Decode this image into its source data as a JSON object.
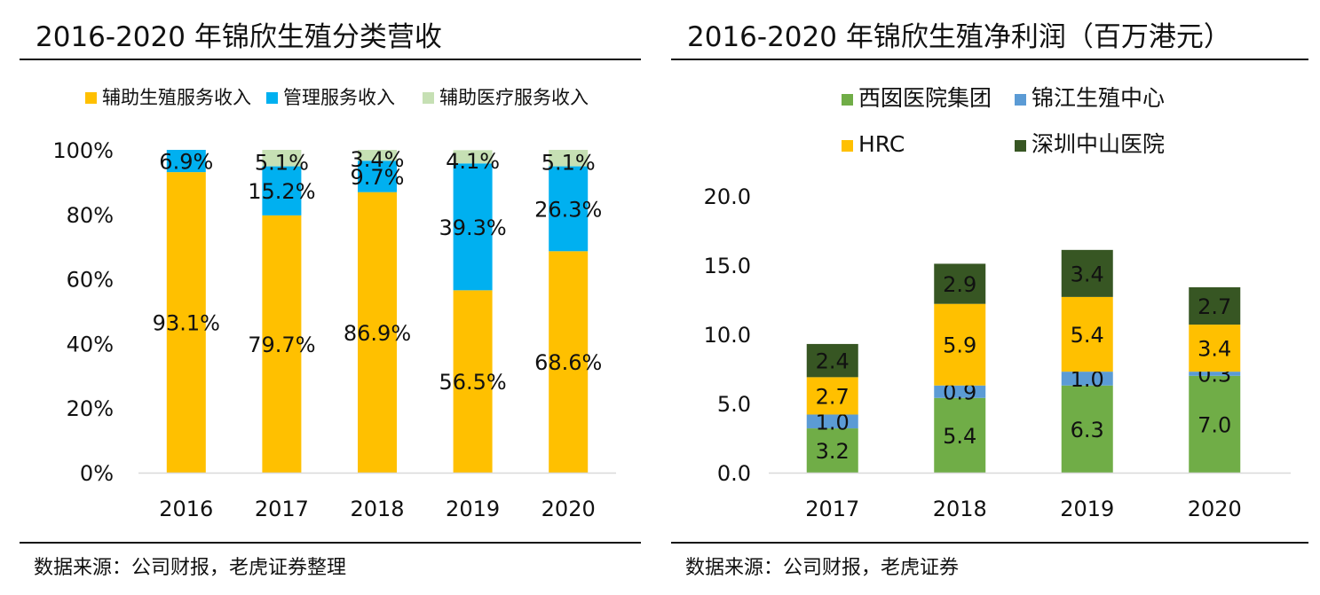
{
  "left": {
    "title": "2016-2020 年锦欣生殖分类营收",
    "source": "数据来源：公司财报，老虎证券整理",
    "chart_data": {
      "type": "bar",
      "stacked": true,
      "categories": [
        "2016",
        "2017",
        "2018",
        "2019",
        "2020"
      ],
      "series": [
        {
          "name": "辅助生殖服务收入",
          "values": [
            93.1,
            79.7,
            86.9,
            56.5,
            68.6
          ],
          "labels": [
            "93.1%",
            "79.7%",
            "86.9%",
            "56.5%",
            "68.6%"
          ],
          "color": "#FFC000"
        },
        {
          "name": "管理服务收入",
          "values": [
            6.9,
            15.2,
            9.7,
            39.3,
            26.3
          ],
          "labels": [
            "6.9%",
            "15.2%",
            "9.7%",
            "39.3%",
            "26.3%"
          ],
          "color": "#00B0F0"
        },
        {
          "name": "辅助医疗服务收入",
          "values": [
            0,
            5.1,
            3.4,
            4.1,
            5.1
          ],
          "labels": [
            "",
            "5.1%",
            "3.4%",
            "4.1%",
            "5.1%"
          ],
          "color": "#C6E0B4"
        }
      ],
      "ylim": [
        0,
        100
      ],
      "yticks": [
        "0%",
        "20%",
        "40%",
        "60%",
        "80%",
        "100%"
      ],
      "grid": false,
      "legend": "top"
    }
  },
  "right": {
    "title": "2016-2020 年锦欣生殖净利润（百万港元）",
    "source": "数据来源：公司财报，老虎证券",
    "chart_data": {
      "type": "bar",
      "stacked": true,
      "categories": [
        "2017",
        "2018",
        "2019",
        "2020"
      ],
      "series": [
        {
          "name": "西囡医院集团",
          "values": [
            3.2,
            5.4,
            6.3,
            7.0
          ],
          "labels": [
            "3.2",
            "5.4",
            "6.3",
            "7.0"
          ],
          "color": "#70AD47"
        },
        {
          "name": "锦江生殖中心",
          "values": [
            1.0,
            0.9,
            1.0,
            0.3
          ],
          "labels": [
            "1.0",
            "0.9",
            "1.0",
            "0.3"
          ],
          "color": "#5B9BD5"
        },
        {
          "name": "HRC",
          "values": [
            2.7,
            5.9,
            5.4,
            3.4
          ],
          "labels": [
            "2.7",
            "5.9",
            "5.4",
            "3.4"
          ],
          "color": "#FFC000"
        },
        {
          "name": "深圳中山医院",
          "values": [
            2.4,
            2.9,
            3.4,
            2.7
          ],
          "labels": [
            "2.4",
            "2.9",
            "3.4",
            "2.7"
          ],
          "color": "#375623"
        }
      ],
      "ylim": [
        0,
        20
      ],
      "yticks": [
        "0.0",
        "5.0",
        "10.0",
        "15.0",
        "20.0"
      ],
      "grid": false,
      "legend": "top"
    }
  }
}
